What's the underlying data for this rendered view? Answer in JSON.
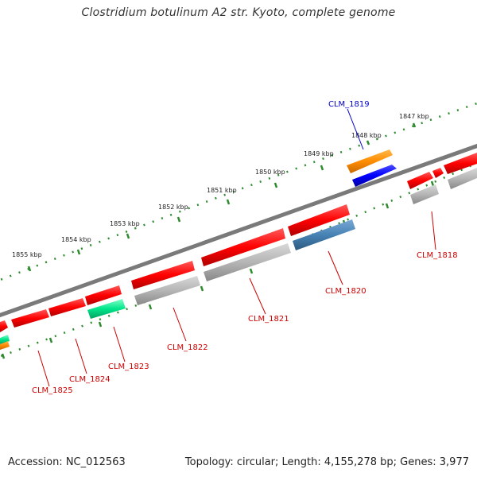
{
  "title": "Clostridium botulinum A2 str. Kyoto, complete genome",
  "footer": {
    "accession": "Accession: NC_012563",
    "summary": "Topology: circular; Length: 4,155,278 bp; Genes: 3,977"
  },
  "colors": {
    "backbone": "#777777",
    "tick": "#2e8b2e",
    "forward_cds": "#ff0000",
    "reverse_cds": "#ff0000",
    "rna_gene": "#aaaaaa",
    "orange_feature": "#ff8c00",
    "blue_feature": "#0000ff",
    "steel_feature": "#4682b4",
    "green_feature": "#00e68a",
    "label_red": "#cc0000",
    "label_blue": "#0000cc"
  },
  "kbp_labels": [
    "1847 kbp",
    "1848 kbp",
    "1849 kbp",
    "1850 kbp",
    "1851 kbp",
    "1852 kbp",
    "1853 kbp",
    "1854 kbp",
    "1855 kbp"
  ],
  "gene_labels": [
    "CLM_1819",
    "CLM_1818",
    "CLM_1820",
    "CLM_1821",
    "CLM_1822",
    "CLM_1823",
    "CLM_1824",
    "CLM_1825"
  ]
}
